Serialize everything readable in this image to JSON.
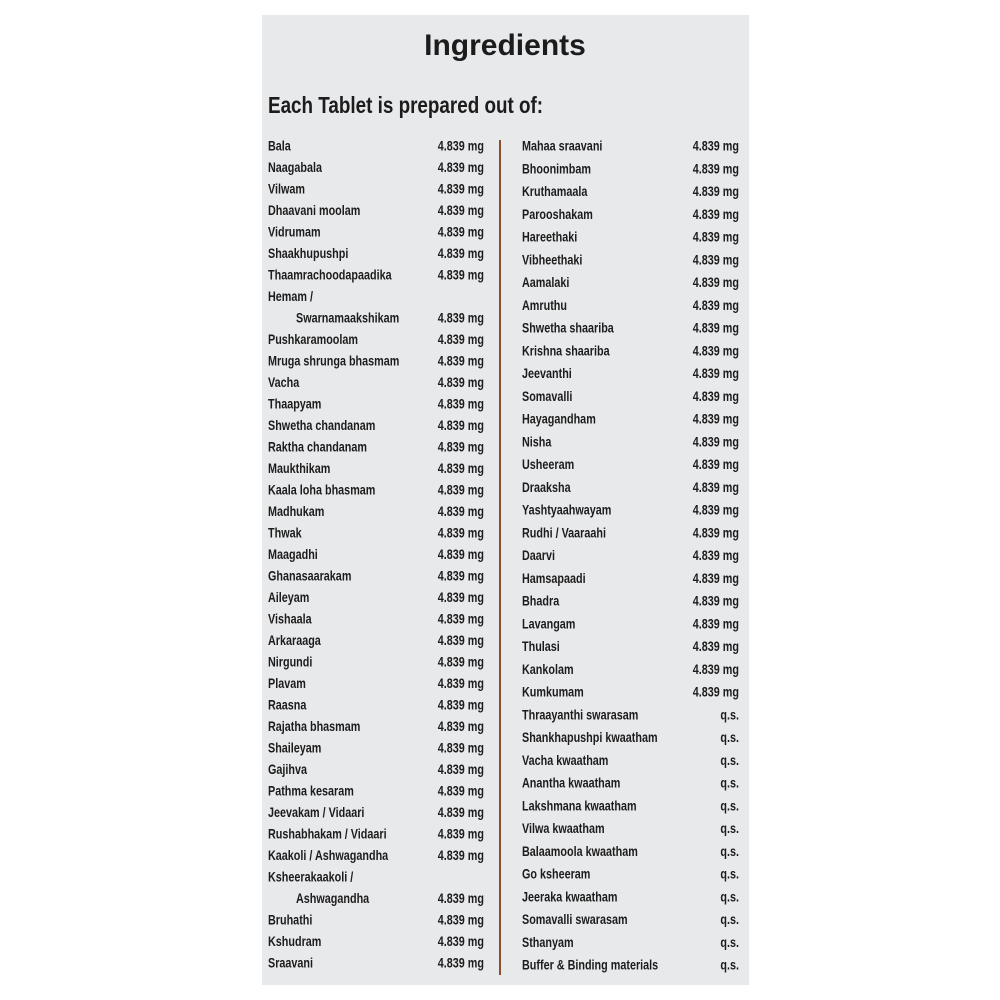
{
  "header": {
    "title": "Ingredients",
    "subtitle": "Each Tablet is prepared out of:"
  },
  "left_column": [
    {
      "name": [
        "Bala"
      ],
      "amount": "4.839 mg"
    },
    {
      "name": [
        "Naagabala"
      ],
      "amount": "4.839 mg"
    },
    {
      "name": [
        "Vilwam"
      ],
      "amount": "4.839 mg"
    },
    {
      "name": [
        "Dhaavani moolam"
      ],
      "amount": "4.839 mg"
    },
    {
      "name": [
        "Vidrumam"
      ],
      "amount": "4.839 mg"
    },
    {
      "name": [
        "Shaakhupushpi"
      ],
      "amount": "4.839 mg"
    },
    {
      "name": [
        "Thaamrachoodapaadika"
      ],
      "amount": "4.839 mg"
    },
    {
      "name": [
        "Hemam /",
        "Swarnamaakshikam"
      ],
      "amount": "4.839 mg"
    },
    {
      "name": [
        "Pushkaramoolam"
      ],
      "amount": "4.839 mg"
    },
    {
      "name": [
        "Mruga shrunga bhasmam"
      ],
      "amount": "4.839 mg"
    },
    {
      "name": [
        "Vacha"
      ],
      "amount": "4.839 mg"
    },
    {
      "name": [
        "Thaapyam"
      ],
      "amount": "4.839 mg"
    },
    {
      "name": [
        "Shwetha chandanam"
      ],
      "amount": "4.839 mg"
    },
    {
      "name": [
        "Raktha chandanam"
      ],
      "amount": "4.839 mg"
    },
    {
      "name": [
        "Maukthikam"
      ],
      "amount": "4.839 mg"
    },
    {
      "name": [
        "Kaala loha bhasmam"
      ],
      "amount": "4.839 mg"
    },
    {
      "name": [
        "Madhukam"
      ],
      "amount": "4.839 mg"
    },
    {
      "name": [
        "Thwak"
      ],
      "amount": "4.839 mg"
    },
    {
      "name": [
        "Maagadhi"
      ],
      "amount": "4.839 mg"
    },
    {
      "name": [
        "Ghanasaarakam"
      ],
      "amount": "4.839 mg"
    },
    {
      "name": [
        "Aileyam"
      ],
      "amount": "4.839 mg"
    },
    {
      "name": [
        "Vishaala"
      ],
      "amount": "4.839 mg"
    },
    {
      "name": [
        "Arkaraaga"
      ],
      "amount": "4.839 mg"
    },
    {
      "name": [
        "Nirgundi"
      ],
      "amount": "4.839 mg"
    },
    {
      "name": [
        "Plavam"
      ],
      "amount": "4.839 mg"
    },
    {
      "name": [
        "Raasna"
      ],
      "amount": "4.839 mg"
    },
    {
      "name": [
        "Rajatha bhasmam"
      ],
      "amount": "4.839 mg"
    },
    {
      "name": [
        "Shaileyam"
      ],
      "amount": "4.839 mg"
    },
    {
      "name": [
        "Gajihva"
      ],
      "amount": "4.839 mg"
    },
    {
      "name": [
        "Pathma kesaram"
      ],
      "amount": "4.839 mg"
    },
    {
      "name": [
        "Jeevakam / Vidaari"
      ],
      "amount": "4.839 mg"
    },
    {
      "name": [
        "Rushabhakam / Vidaari"
      ],
      "amount": "4.839 mg"
    },
    {
      "name": [
        "Kaakoli / Ashwagandha"
      ],
      "amount": "4.839 mg"
    },
    {
      "name": [
        "Ksheerakaakoli /",
        "Ashwagandha"
      ],
      "amount": "4.839 mg"
    },
    {
      "name": [
        "Bruhathi"
      ],
      "amount": "4.839 mg"
    },
    {
      "name": [
        "Kshudram"
      ],
      "amount": "4.839 mg"
    },
    {
      "name": [
        "Sraavani"
      ],
      "amount": "4.839 mg"
    }
  ],
  "right_column": [
    {
      "name": [
        "Mahaa sraavani"
      ],
      "amount": "4.839 mg"
    },
    {
      "name": [
        "Bhoonimbam"
      ],
      "amount": "4.839 mg"
    },
    {
      "name": [
        "Kruthamaala"
      ],
      "amount": "4.839 mg"
    },
    {
      "name": [
        "Parooshakam"
      ],
      "amount": "4.839 mg"
    },
    {
      "name": [
        "Hareethaki"
      ],
      "amount": "4.839 mg"
    },
    {
      "name": [
        "Vibheethaki"
      ],
      "amount": "4.839 mg"
    },
    {
      "name": [
        "Aamalaki"
      ],
      "amount": "4.839 mg"
    },
    {
      "name": [
        "Amruthu"
      ],
      "amount": "4.839 mg"
    },
    {
      "name": [
        "Shwetha shaariba"
      ],
      "amount": "4.839 mg"
    },
    {
      "name": [
        "Krishna shaariba"
      ],
      "amount": "4.839 mg"
    },
    {
      "name": [
        "Jeevanthi"
      ],
      "amount": "4.839 mg"
    },
    {
      "name": [
        "Somavalli"
      ],
      "amount": "4.839 mg"
    },
    {
      "name": [
        "Hayagandham"
      ],
      "amount": "4.839 mg"
    },
    {
      "name": [
        "Nisha"
      ],
      "amount": "4.839 mg"
    },
    {
      "name": [
        "Usheeram"
      ],
      "amount": "4.839 mg"
    },
    {
      "name": [
        "Draaksha"
      ],
      "amount": "4.839 mg"
    },
    {
      "name": [
        "Yashtyaahwayam"
      ],
      "amount": "4.839 mg"
    },
    {
      "name": [
        "Rudhi / Vaaraahi"
      ],
      "amount": "4.839 mg"
    },
    {
      "name": [
        "Daarvi"
      ],
      "amount": "4.839 mg"
    },
    {
      "name": [
        "Hamsapaadi"
      ],
      "amount": "4.839 mg"
    },
    {
      "name": [
        "Bhadra"
      ],
      "amount": "4.839 mg"
    },
    {
      "name": [
        "Lavangam"
      ],
      "amount": "4.839 mg"
    },
    {
      "name": [
        "Thulasi"
      ],
      "amount": "4.839 mg"
    },
    {
      "name": [
        "Kankolam"
      ],
      "amount": "4.839 mg"
    },
    {
      "name": [
        "Kumkumam"
      ],
      "amount": "4.839 mg"
    },
    {
      "name": [
        "Thraayanthi swarasam"
      ],
      "amount": "q.s."
    },
    {
      "name": [
        "Shankhapushpi kwaatham"
      ],
      "amount": "q.s."
    },
    {
      "name": [
        "Vacha kwaatham"
      ],
      "amount": "q.s."
    },
    {
      "name": [
        "Anantha kwaatham"
      ],
      "amount": "q.s."
    },
    {
      "name": [
        "Lakshmana kwaatham"
      ],
      "amount": "q.s."
    },
    {
      "name": [
        "Vilwa kwaatham"
      ],
      "amount": "q.s."
    },
    {
      "name": [
        "Balaamoola kwaatham"
      ],
      "amount": "q.s."
    },
    {
      "name": [
        "Go ksheeram"
      ],
      "amount": "q.s."
    },
    {
      "name": [
        "Jeeraka kwaatham"
      ],
      "amount": "q.s."
    },
    {
      "name": [
        "Somavalli swarasam"
      ],
      "amount": "q.s."
    },
    {
      "name": [
        "Sthanyam"
      ],
      "amount": "q.s."
    },
    {
      "name": [
        "Buffer & Binding materials"
      ],
      "amount": "q.s."
    }
  ]
}
